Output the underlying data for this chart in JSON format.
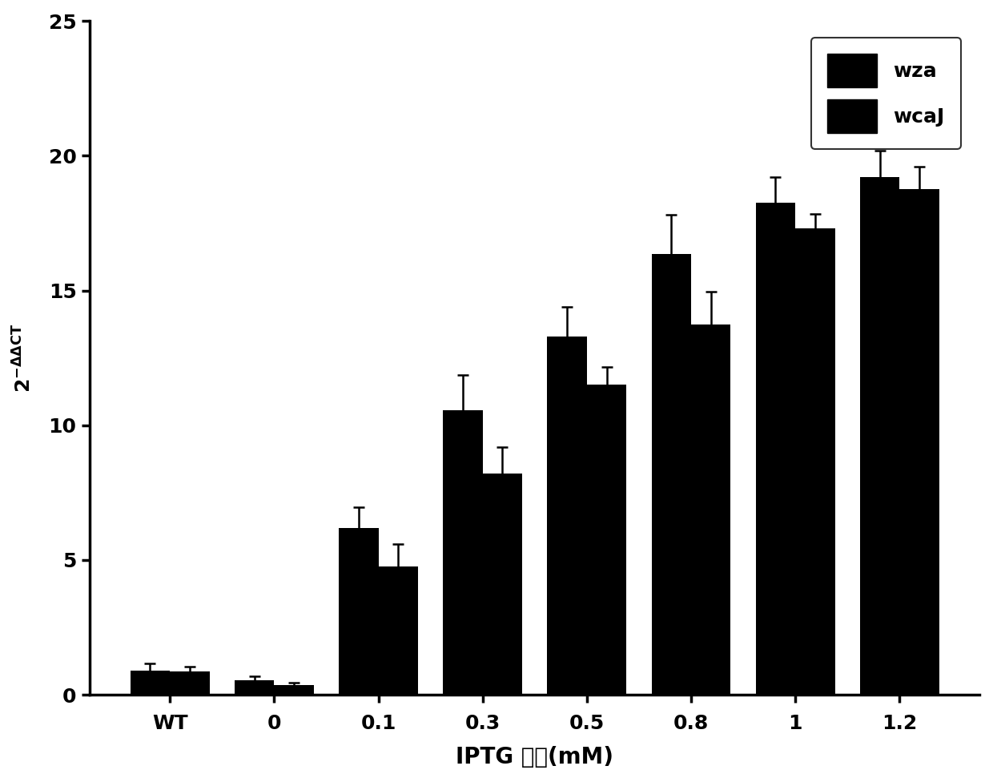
{
  "categories": [
    "WT",
    "0",
    "0.1",
    "0.3",
    "0.5",
    "0.8",
    "1",
    "1.2"
  ],
  "wza_values": [
    0.9,
    0.55,
    6.2,
    10.55,
    13.3,
    16.35,
    18.25,
    19.2
  ],
  "wza_errors": [
    0.25,
    0.15,
    0.75,
    1.3,
    1.1,
    1.45,
    0.95,
    1.0
  ],
  "wcaJ_values": [
    0.85,
    0.35,
    4.75,
    8.2,
    11.5,
    13.75,
    17.3,
    18.75
  ],
  "wcaJ_errors": [
    0.2,
    0.1,
    0.85,
    1.0,
    0.65,
    1.2,
    0.55,
    0.85
  ],
  "bar_color": "#000000",
  "ylabel": "2⁻ᴵᴵCT",
  "xlabel": "IPTG 浓度(mM)",
  "ylim": [
    0,
    25
  ],
  "yticks": [
    0,
    5,
    10,
    15,
    20,
    25
  ],
  "legend_labels": [
    "wza",
    "wcaJ"
  ],
  "bar_width": 0.38,
  "background_color": "#ffffff",
  "xlabel_fontsize": 20,
  "ylabel_fontsize": 18,
  "tick_fontsize": 18,
  "legend_fontsize": 18
}
